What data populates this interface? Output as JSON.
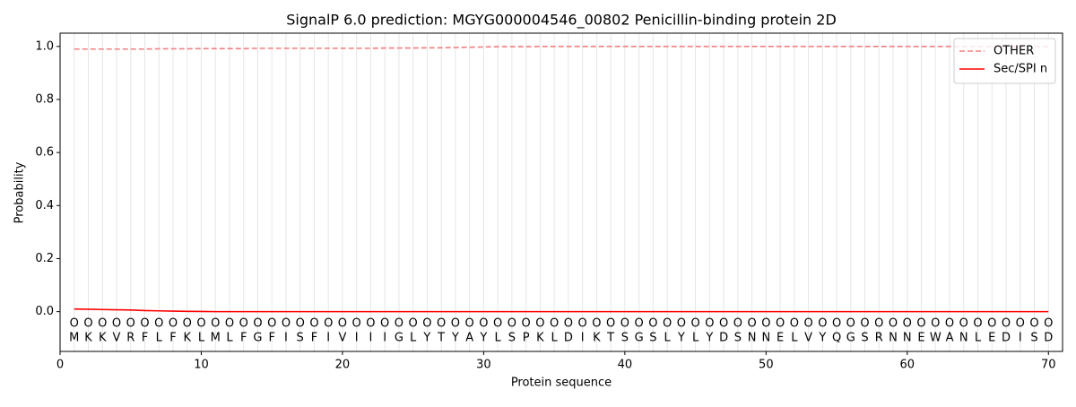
{
  "chart_data": {
    "type": "line",
    "title": "SignalP 6.0 prediction: MGYG000004546_00802 Penicillin-binding protein 2D",
    "xlabel": "Protein sequence",
    "ylabel": "Probability",
    "x": [
      1,
      2,
      3,
      4,
      5,
      6,
      7,
      8,
      9,
      10,
      11,
      12,
      13,
      14,
      15,
      16,
      17,
      18,
      19,
      20,
      21,
      22,
      23,
      24,
      25,
      26,
      27,
      28,
      29,
      30,
      31,
      32,
      33,
      34,
      35,
      36,
      37,
      38,
      39,
      40,
      41,
      42,
      43,
      44,
      45,
      46,
      47,
      48,
      49,
      50,
      51,
      52,
      53,
      54,
      55,
      56,
      57,
      58,
      59,
      60,
      61,
      62,
      63,
      64,
      65,
      66,
      67,
      68,
      69,
      70
    ],
    "residues": [
      "M",
      "K",
      "K",
      "V",
      "R",
      "F",
      "L",
      "F",
      "K",
      "L",
      "M",
      "L",
      "F",
      "G",
      "F",
      "I",
      "S",
      "F",
      "I",
      "V",
      "I",
      "I",
      "I",
      "G",
      "L",
      "Y",
      "T",
      "Y",
      "A",
      "Y",
      "L",
      "S",
      "P",
      "K",
      "L",
      "D",
      "I",
      "K",
      "T",
      "S",
      "G",
      "S",
      "L",
      "Y",
      "L",
      "Y",
      "D",
      "S",
      "N",
      "N",
      "E",
      "L",
      "V",
      "Y",
      "Q",
      "G",
      "S",
      "R",
      "N",
      "N",
      "E",
      "W",
      "A",
      "N",
      "L",
      "E",
      "D",
      "I",
      "S",
      "D"
    ],
    "predicted_labels": [
      "O",
      "O",
      "O",
      "O",
      "O",
      "O",
      "O",
      "O",
      "O",
      "O",
      "O",
      "O",
      "O",
      "O",
      "O",
      "O",
      "O",
      "O",
      "O",
      "O",
      "O",
      "O",
      "O",
      "O",
      "O",
      "O",
      "O",
      "O",
      "O",
      "O",
      "O",
      "O",
      "O",
      "O",
      "O",
      "O",
      "O",
      "O",
      "O",
      "O",
      "O",
      "O",
      "O",
      "O",
      "O",
      "O",
      "O",
      "O",
      "O",
      "O",
      "O",
      "O",
      "O",
      "O",
      "O",
      "O",
      "O",
      "O",
      "O",
      "O",
      "O",
      "O",
      "O",
      "O",
      "O",
      "O",
      "O",
      "O",
      "O",
      "O"
    ],
    "series": [
      {
        "name": "OTHER",
        "color": "#f08080",
        "style": "dashed",
        "values": [
          0.99,
          0.99,
          0.99,
          0.99,
          0.99,
          0.99,
          0.991,
          0.991,
          0.991,
          0.992,
          0.992,
          0.992,
          0.992,
          0.993,
          0.993,
          0.993,
          0.993,
          0.993,
          0.993,
          0.993,
          0.993,
          0.993,
          0.994,
          0.994,
          0.994,
          0.995,
          0.995,
          0.996,
          0.997,
          0.998,
          0.999,
          0.999,
          0.999,
          1.0,
          1.0,
          1.0,
          1.0,
          1.0,
          1.0,
          1.0,
          1.0,
          1.0,
          1.0,
          1.0,
          1.0,
          1.0,
          1.0,
          1.0,
          1.0,
          1.0,
          1.0,
          1.0,
          1.0,
          1.0,
          1.0,
          1.0,
          1.0,
          1.0,
          1.0,
          1.0,
          1.0,
          1.0,
          1.0,
          1.0,
          1.0,
          1.0,
          1.0,
          1.0,
          1.0,
          1.0
        ]
      },
      {
        "name": "Sec/SPI n",
        "color": "#ff0000",
        "style": "solid",
        "values": [
          0.01,
          0.009,
          0.008,
          0.007,
          0.006,
          0.004,
          0.003,
          0.002,
          0.001,
          0.0005,
          0,
          0,
          0,
          0,
          0,
          0,
          0,
          0,
          0,
          0,
          0,
          0,
          0,
          0,
          0,
          0,
          0,
          0,
          0,
          0,
          0,
          0,
          0,
          0,
          0,
          0,
          0,
          0,
          0,
          0,
          0,
          0,
          0,
          0,
          0,
          0,
          0,
          0,
          0,
          0,
          0,
          0,
          0,
          0,
          0,
          0,
          0,
          0,
          0,
          0,
          0,
          0,
          0,
          0,
          0,
          0,
          0,
          0,
          0,
          0
        ]
      }
    ],
    "xlim": [
      0,
      71
    ],
    "ylim": [
      -0.15,
      1.05
    ],
    "xticks": [
      0,
      10,
      20,
      30,
      40,
      50,
      60,
      70
    ],
    "yticks": [
      {
        "value": 0,
        "label": "0.0"
      },
      {
        "value": 0.2,
        "label": "0.2"
      },
      {
        "value": 0.4,
        "label": "0.4"
      },
      {
        "value": 0.6,
        "label": "0.6"
      },
      {
        "value": 0.8,
        "label": "0.8"
      },
      {
        "value": 1,
        "label": "1.0"
      }
    ],
    "legend": "upper right"
  }
}
